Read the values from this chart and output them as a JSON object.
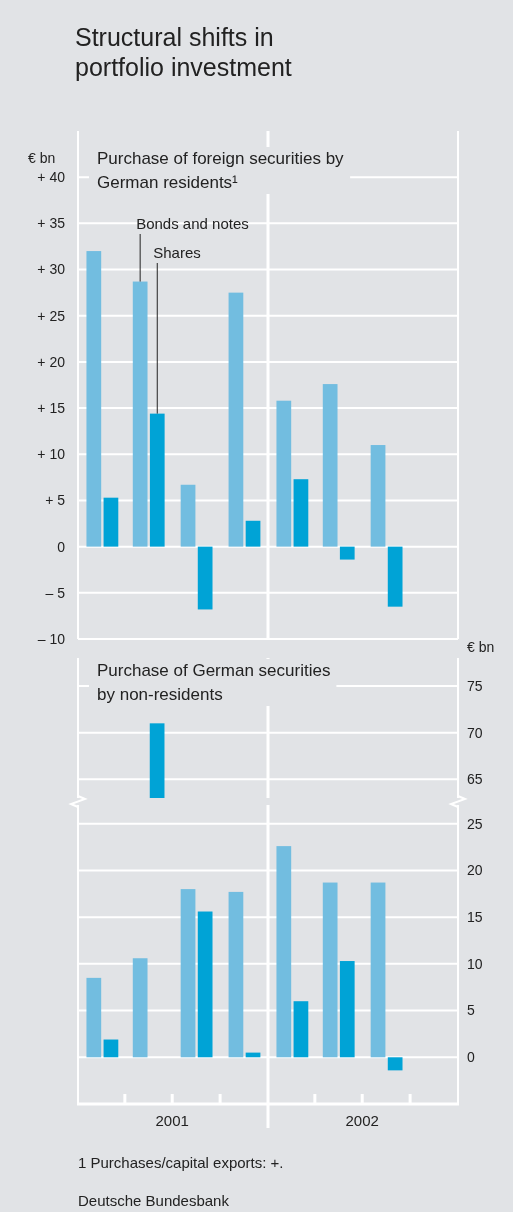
{
  "chart_data": [
    {
      "type": "bar",
      "title": "Structural shifts in portfolio investment",
      "subtitle": "Purchase of foreign securities by German residents¹",
      "ylabel": "€ bn",
      "x": [
        "2001-02-15",
        "2001-05-15",
        "2001-08-15",
        "2001-11-15",
        "2002-02-15",
        "2002-05-15",
        "2002-08-15"
      ],
      "xlim": [
        "2001-01-01",
        "2003-01-01"
      ],
      "series": [
        {
          "name": "Bonds and notes",
          "color": "#72bde0",
          "values": [
            32,
            28.7,
            6.7,
            27.5,
            15.8,
            17.6,
            11.0
          ]
        },
        {
          "name": "Shares",
          "color": "#00a3d6",
          "values": [
            5.3,
            14.4,
            -6.8,
            2.8,
            7.3,
            -1.4,
            -6.5
          ]
        }
      ],
      "ylim": [
        -10,
        45
      ],
      "yticks": [
        {
          "value": -10,
          "label": "– 10"
        },
        {
          "value": -5,
          "label": "– 5"
        },
        0,
        {
          "value": 5,
          "label": "+ 5"
        },
        {
          "value": 10,
          "label": "+ 10"
        },
        {
          "value": 15,
          "label": "+ 15"
        },
        {
          "value": 20,
          "label": "+ 20"
        },
        {
          "value": 25,
          "label": "+ 25"
        },
        {
          "value": 30,
          "label": "+ 30"
        },
        {
          "value": 35,
          "label": "+ 35"
        },
        {
          "value": 40,
          "label": "+ 40"
        }
      ],
      "grid": "y",
      "legend": false,
      "tick_labels": "y",
      "ref_lines": [
        {
          "axis": "x",
          "value": "2002-01-01",
          "color": "#ffffff"
        }
      ]
    },
    {
      "type": "bar",
      "title": "Purchase of German securities by non-residents",
      "y2label": "€ bn",
      "xlim": [
        "2001-01-01",
        "2003-01-01"
      ],
      "series": [
        {
          "color": "#00a3d6",
          "axis": "y2",
          "x": [
            "2001-06-02"
          ],
          "values": [
            71
          ]
        }
      ],
      "y2lim": [
        63,
        78
      ],
      "y2ticks": [
        65,
        70,
        75
      ],
      "grid": "y",
      "legend": false,
      "tick_labels": "y2",
      "ref_lines": [
        {
          "axis": "x",
          "value": "2002-01-01",
          "color": "#ffffff"
        }
      ]
    },
    {
      "type": "bar",
      "x": [
        "2001-02-15",
        "2001-05-15",
        "2001-08-15",
        "2001-11-15",
        "2002-02-15",
        "2002-05-15",
        "2002-08-15"
      ],
      "xlim": [
        "2001-01-01",
        "2003-01-01"
      ],
      "xticks": [
        {
          "value": "2001-04-01",
          "label": null
        },
        {
          "value": "2001-07-01",
          "label": "2001"
        },
        {
          "value": "2001-07-01",
          "label": null
        },
        {
          "value": "2001-10-01",
          "label": null
        },
        {
          "value": "2002-04-01",
          "label": null
        },
        {
          "value": "2002-07-01",
          "label": "2002"
        },
        {
          "value": "2002-07-01",
          "label": null
        },
        {
          "value": "2002-10-01",
          "label": null
        }
      ],
      "series": [
        {
          "color": "#72bde0",
          "axis": "y2",
          "values": [
            8.5,
            10.6,
            18.0,
            17.7,
            22.6,
            18.7,
            18.7
          ]
        },
        {
          "color": "#00a3d6",
          "axis": "y2",
          "values": [
            1.9,
            null,
            15.6,
            0.5,
            6.0,
            10.3,
            -1.4
          ]
        }
      ],
      "y2lim": [
        -5,
        27
      ],
      "y2ticks": [
        0,
        5,
        10,
        15,
        20,
        25
      ],
      "grid": "y",
      "legend": false,
      "ref_lines": [
        {
          "axis": "x",
          "value": "2002-01-01",
          "color": "#ffffff"
        }
      ],
      "annotations": [
        "1 Purchases/capital exports: +.",
        "Deutsche Bundesbank"
      ]
    }
  ]
}
